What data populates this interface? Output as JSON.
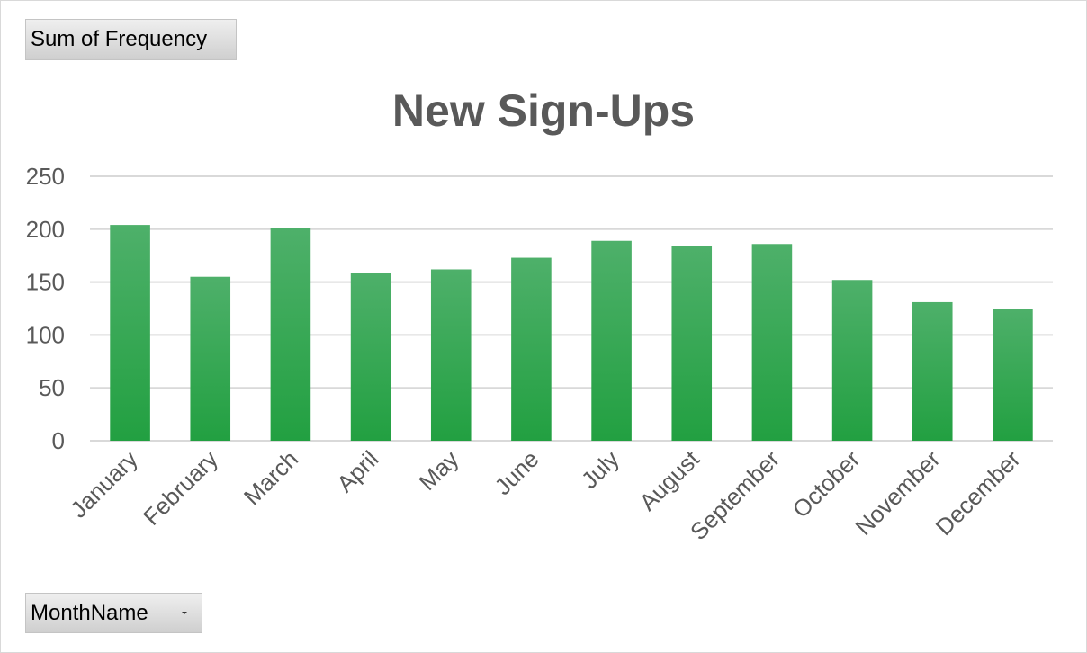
{
  "pivot": {
    "value_field_label": "Sum of Frequency",
    "axis_field_label": "MonthName"
  },
  "colors": {
    "bar_top": "#4eb06a",
    "bar_bottom": "#22a041",
    "gridline": "#d9d9d9",
    "text": "#595959"
  },
  "chart_data": {
    "type": "bar",
    "title": "New Sign-Ups",
    "xlabel": "",
    "ylabel": "",
    "categories": [
      "January",
      "February",
      "March",
      "April",
      "May",
      "June",
      "July",
      "August",
      "September",
      "October",
      "November",
      "December"
    ],
    "values": [
      204,
      155,
      201,
      159,
      162,
      173,
      189,
      184,
      186,
      152,
      131,
      125
    ],
    "ylim": [
      0,
      250
    ],
    "yticks": [
      "0",
      "50",
      "100",
      "150",
      "200",
      "250"
    ],
    "grid": true,
    "legend": "none"
  }
}
